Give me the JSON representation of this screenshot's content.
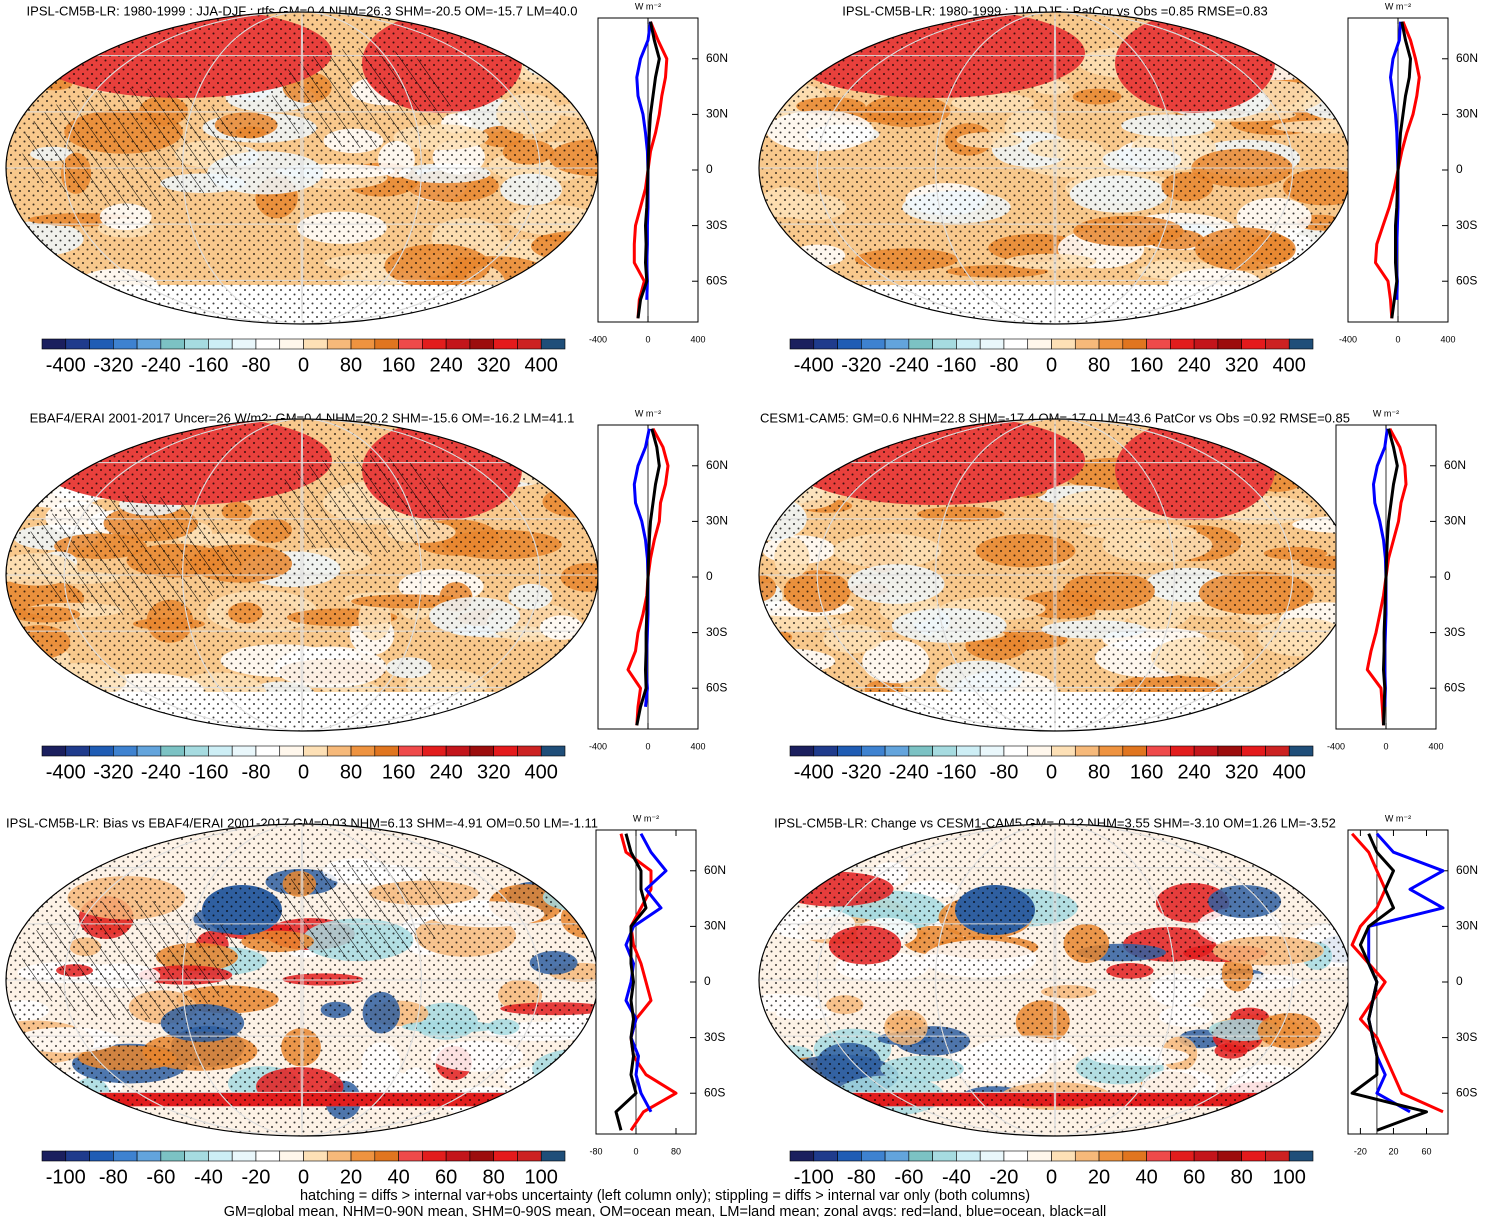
{
  "chart_data": [
    {
      "type": "zonal_map",
      "title": "IPSL-CM5B-LR: 1980-1999 : JJA-DJF : rtfs GM=0.4 NHM=26.3 SHM=-20.5 OM=-15.7 LM=40.0",
      "units": "W m⁻²",
      "colorbar": {
        "clim": [
          -440,
          440
        ],
        "ticks": [
          -400,
          -320,
          -240,
          -160,
          -80,
          0,
          80,
          160,
          240,
          320,
          400
        ]
      },
      "xlim": [
        -400,
        400
      ],
      "xticks": [
        -400,
        0,
        400
      ],
      "ylim": [
        -82,
        82
      ],
      "yticks": [
        {
          "value": 60,
          "label": "60N"
        },
        {
          "value": 30,
          "label": "30N"
        },
        0,
        {
          "value": -30,
          "label": "30S"
        },
        {
          "value": -60,
          "label": "60S"
        }
      ],
      "y": [
        -80,
        -70,
        -60,
        -50,
        -40,
        -30,
        -20,
        -10,
        0,
        10,
        20,
        30,
        40,
        50,
        60,
        70,
        80
      ],
      "hatching": true,
      "style": "mean",
      "series": [
        {
          "color": "#ff0000",
          "values": [
            -80,
            -70,
            -30,
            -110,
            -110,
            -100,
            -60,
            -20,
            0,
            20,
            60,
            90,
            110,
            140,
            150,
            80,
            20
          ]
        },
        {
          "color": "#0000ff",
          "values": [
            null,
            -10,
            -5,
            -10,
            -5,
            -5,
            0,
            0,
            0,
            -5,
            -20,
            -40,
            -80,
            -90,
            -60,
            0,
            20
          ]
        },
        {
          "color": "#000000",
          "values": [
            -80,
            -60,
            -10,
            -20,
            -15,
            -20,
            -10,
            -5,
            0,
            5,
            10,
            20,
            40,
            60,
            90,
            50,
            20
          ]
        }
      ]
    },
    {
      "type": "zonal_map",
      "title": "IPSL-CM5B-LR: 1980-1999 : JJA-DJF : PatCor vs Obs =0.85 RMSE=0.83",
      "units": "W m⁻²",
      "colorbar": {
        "clim": [
          -440,
          440
        ],
        "ticks": [
          -400,
          -320,
          -240,
          -160,
          -80,
          0,
          80,
          160,
          240,
          320,
          400
        ]
      },
      "xlim": [
        -400,
        400
      ],
      "xticks": [
        -400,
        0,
        400
      ],
      "ylim": [
        -82,
        82
      ],
      "yticks": [
        {
          "value": 60,
          "label": "60N"
        },
        {
          "value": 30,
          "label": "30N"
        },
        0,
        {
          "value": -30,
          "label": "30S"
        },
        {
          "value": -60,
          "label": "60S"
        }
      ],
      "y": [
        -80,
        -70,
        -60,
        -50,
        -40,
        -30,
        -20,
        -10,
        0,
        10,
        20,
        30,
        40,
        50,
        60,
        70,
        80
      ],
      "hatching": false,
      "style": "mean",
      "series": [
        {
          "color": "#ff0000",
          "values": [
            -50,
            -60,
            -80,
            -180,
            -170,
            -120,
            -70,
            -30,
            0,
            30,
            70,
            120,
            150,
            170,
            140,
            100,
            40
          ]
        },
        {
          "color": "#0000ff",
          "values": [
            null,
            -10,
            -5,
            -15,
            -10,
            -5,
            0,
            0,
            0,
            -5,
            -10,
            -20,
            -40,
            -60,
            -40,
            10,
            20
          ]
        },
        {
          "color": "#000000",
          "values": [
            -50,
            -30,
            -10,
            -20,
            -20,
            -20,
            -10,
            -5,
            0,
            10,
            20,
            40,
            60,
            90,
            100,
            60,
            30
          ]
        }
      ]
    },
    {
      "type": "zonal_map",
      "title": "EBAF4/ERAI 2001-2017 Uncer=26 W/m2: GM=0.4 NHM=20.2 SHM=-15.6 OM=-16.2 LM=41.1",
      "units": "W m⁻²",
      "colorbar": {
        "clim": [
          -440,
          440
        ],
        "ticks": [
          -400,
          -320,
          -240,
          -160,
          -80,
          0,
          80,
          160,
          240,
          320,
          400
        ]
      },
      "xlim": [
        -400,
        400
      ],
      "xticks": [
        -400,
        0,
        400
      ],
      "ylim": [
        -82,
        82
      ],
      "yticks": [
        {
          "value": 60,
          "label": "60N"
        },
        {
          "value": 30,
          "label": "30N"
        },
        0,
        {
          "value": -30,
          "label": "30S"
        },
        {
          "value": -60,
          "label": "60S"
        }
      ],
      "y": [
        -80,
        -70,
        -60,
        -50,
        -40,
        -30,
        -20,
        -10,
        0,
        10,
        20,
        30,
        40,
        50,
        60,
        70,
        80
      ],
      "hatching": true,
      "style": "mean",
      "series": [
        {
          "color": "#ff0000",
          "values": [
            -90,
            -80,
            -60,
            -160,
            -100,
            -80,
            -40,
            -10,
            0,
            20,
            50,
            90,
            100,
            140,
            160,
            120,
            40
          ]
        },
        {
          "color": "#0000ff",
          "values": [
            null,
            -20,
            -5,
            -15,
            -10,
            -5,
            0,
            0,
            0,
            -5,
            -20,
            -50,
            -100,
            -110,
            -80,
            -20,
            10
          ]
        },
        {
          "color": "#000000",
          "values": [
            -90,
            -60,
            -15,
            -20,
            -15,
            -15,
            -10,
            -5,
            0,
            5,
            10,
            20,
            40,
            60,
            90,
            70,
            30
          ]
        }
      ]
    },
    {
      "type": "zonal_map",
      "title": "CESM1-CAM5: GM=0.6 NHM=22.8 SHM=-17.4 OM=-17.0 LM=43.6 PatCor vs Obs =0.92 RMSE=0.85",
      "units": "W m⁻²",
      "colorbar": {
        "clim": [
          -440,
          440
        ],
        "ticks": [
          -400,
          -320,
          -240,
          -160,
          -80,
          0,
          80,
          160,
          240,
          320,
          400
        ]
      },
      "xlim": [
        -400,
        400
      ],
      "xticks": [
        -400,
        0,
        400
      ],
      "ylim": [
        -82,
        82
      ],
      "yticks": [
        {
          "value": 60,
          "label": "60N"
        },
        {
          "value": 30,
          "label": "30N"
        },
        0,
        {
          "value": -30,
          "label": "30S"
        },
        {
          "value": -60,
          "label": "60S"
        }
      ],
      "y": [
        -80,
        -70,
        -60,
        -50,
        -40,
        -30,
        -20,
        -10,
        0,
        10,
        20,
        30,
        40,
        50,
        60,
        70,
        80
      ],
      "hatching": false,
      "style": "mean",
      "series": [
        {
          "color": "#ff0000",
          "values": [
            -20,
            -30,
            -40,
            -150,
            -120,
            -80,
            -50,
            -20,
            0,
            20,
            60,
            100,
            120,
            160,
            150,
            110,
            30
          ]
        },
        {
          "color": "#0000ff",
          "values": [
            null,
            -10,
            -5,
            -10,
            -10,
            -5,
            0,
            0,
            0,
            -5,
            -20,
            -50,
            -90,
            -100,
            -70,
            -10,
            10
          ]
        },
        {
          "color": "#000000",
          "values": [
            -20,
            -15,
            -10,
            -20,
            -15,
            -15,
            -10,
            -5,
            0,
            5,
            10,
            20,
            40,
            60,
            90,
            60,
            20
          ]
        }
      ]
    },
    {
      "type": "zonal_map",
      "title": "IPSL-CM5B-LR: Bias vs EBAF4/ERAI 2001-2017 GM=0.03 NHM=6.13 SHM=-4.91 OM=0.50 LM=-1.11",
      "units": "W m⁻²",
      "colorbar": {
        "clim": [
          -110,
          110
        ],
        "ticks": [
          -100,
          -80,
          -60,
          -40,
          -20,
          0,
          20,
          40,
          60,
          80,
          100
        ]
      },
      "xlim": [
        -80,
        120
      ],
      "xticks": [
        -80,
        0,
        80
      ],
      "ylim": [
        -82,
        82
      ],
      "yticks": [
        {
          "value": 60,
          "label": "60N"
        },
        {
          "value": 30,
          "label": "30N"
        },
        0,
        {
          "value": -30,
          "label": "30S"
        },
        {
          "value": -60,
          "label": "60S"
        }
      ],
      "y": [
        -80,
        -70,
        -60,
        -50,
        -40,
        -30,
        -20,
        -10,
        0,
        10,
        20,
        30,
        40,
        50,
        60,
        70,
        80
      ],
      "hatching": true,
      "style": "diff",
      "series": [
        {
          "color": "#ff0000",
          "values": [
            -10,
            15,
            80,
            20,
            -5,
            -10,
            0,
            30,
            20,
            10,
            -5,
            -10,
            10,
            30,
            30,
            -20,
            -30
          ]
        },
        {
          "color": "#0000ff",
          "values": [
            null,
            30,
            10,
            0,
            5,
            -10,
            0,
            -20,
            -10,
            -5,
            -20,
            -5,
            50,
            20,
            60,
            30,
            10
          ]
        },
        {
          "color": "#000000",
          "values": [
            -30,
            -40,
            0,
            -10,
            -5,
            -10,
            -5,
            -10,
            -5,
            -10,
            -10,
            -10,
            20,
            10,
            10,
            -10,
            -20
          ]
        }
      ]
    },
    {
      "type": "zonal_map",
      "title": "IPSL-CM5B-LR: Change vs CESM1-CAM5 GM=-0.12 NHM=3.55 SHM=-3.10 OM=1.26 LM=-3.52",
      "units": "W m⁻²",
      "colorbar": {
        "clim": [
          -110,
          110
        ],
        "ticks": [
          -100,
          -80,
          -60,
          -40,
          -20,
          0,
          20,
          40,
          60,
          80,
          100
        ]
      },
      "xlim": [
        -35,
        86
      ],
      "xticks": [
        -20,
        20,
        60
      ],
      "ylim": [
        -82,
        82
      ],
      "yticks": [
        {
          "value": 60,
          "label": "60N"
        },
        {
          "value": 30,
          "label": "30N"
        },
        0,
        {
          "value": -30,
          "label": "30S"
        },
        {
          "value": -60,
          "label": "60S"
        }
      ],
      "y": [
        -80,
        -70,
        -60,
        -50,
        -40,
        -30,
        -20,
        -10,
        0,
        10,
        20,
        30,
        40,
        50,
        60,
        70,
        80
      ],
      "hatching": false,
      "style": "diff",
      "series": [
        {
          "color": "#ff0000",
          "values": [
            null,
            80,
            30,
            20,
            10,
            0,
            -20,
            -5,
            10,
            -10,
            -30,
            -20,
            0,
            10,
            0,
            -10,
            -30
          ]
        },
        {
          "color": "#0000ff",
          "values": [
            null,
            40,
            0,
            10,
            0,
            -5,
            -10,
            -5,
            0,
            -10,
            -10,
            -10,
            80,
            40,
            80,
            20,
            0
          ]
        },
        {
          "color": "#000000",
          "values": [
            0,
            60,
            -30,
            0,
            0,
            -5,
            -10,
            -5,
            0,
            -10,
            -20,
            -10,
            20,
            10,
            20,
            0,
            -10
          ]
        }
      ]
    }
  ],
  "caption": [
    "hatching = diffs > internal var+obs uncertainty (left column only); stippling = diffs > internal var only (both columns)",
    "GM=global mean, NHM=0-90N mean, SHM=0-90S mean, OM=ocean mean, LM=land mean; zonal avgs: red=land, blue=ocean, black=all"
  ]
}
